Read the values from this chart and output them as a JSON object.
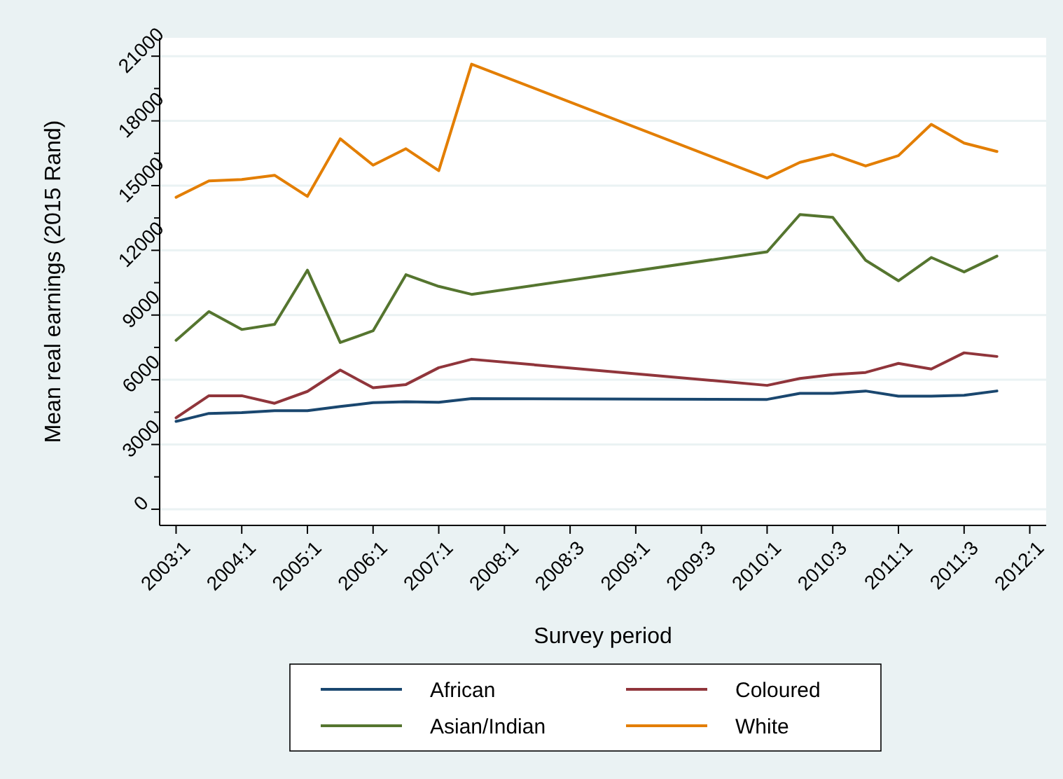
{
  "chart_data": {
    "type": "line",
    "xlabel": "Survey period",
    "ylabel": "Mean real earnings (2015 Rand)",
    "categories": [
      "2003:1",
      null,
      "2004:1",
      null,
      "2005:1",
      null,
      "2006:1",
      null,
      "2007:1",
      null,
      "2008:1",
      null,
      "2008:3",
      null,
      "2009:1",
      null,
      "2009:3",
      null,
      "2010:1",
      null,
      "2010:3",
      null,
      "2011:1",
      null,
      "2011:3",
      null,
      "2012:1"
    ],
    "ylim": [
      -750,
      21850
    ],
    "yticks": [
      0,
      {
        "value": 1500,
        "label": null
      },
      3000,
      {
        "value": 4500,
        "label": null
      },
      6000,
      {
        "value": 7500,
        "label": null
      },
      9000,
      {
        "value": 10500,
        "label": null
      },
      12000,
      {
        "value": 13500,
        "label": null
      },
      15000,
      {
        "value": 16500,
        "label": null
      },
      18000,
      {
        "value": 19500,
        "label": null
      },
      21000
    ],
    "grid": "y",
    "legend": "bottom",
    "marker": "none",
    "line_style": "solid",
    "series": [
      {
        "name": "African",
        "color": "#1a476f",
        "values": [
          4070,
          4440,
          4480,
          4570,
          4570,
          4760,
          4940,
          4980,
          4960,
          5130,
          null,
          null,
          null,
          null,
          null,
          null,
          null,
          null,
          5090,
          5370,
          5370,
          5480,
          5240,
          5240,
          5280,
          5480,
          null
        ]
      },
      {
        "name": "Coloured",
        "color": "#90353b",
        "values": [
          4240,
          5260,
          5260,
          4910,
          5460,
          6450,
          5630,
          5780,
          6560,
          6950,
          null,
          null,
          null,
          null,
          null,
          null,
          null,
          null,
          5740,
          6060,
          6240,
          6340,
          6760,
          6500,
          7250,
          7080,
          null
        ]
      },
      {
        "name": "Asian/Indian",
        "color": "#55752f",
        "values": [
          7830,
          9160,
          8330,
          8570,
          11080,
          7730,
          8270,
          10870,
          10330,
          9960,
          null,
          null,
          null,
          null,
          null,
          null,
          null,
          null,
          11930,
          13660,
          13530,
          11540,
          10590,
          11670,
          11000,
          11730,
          null
        ]
      },
      {
        "name": "White",
        "color": "#e37e00",
        "values": [
          14460,
          15220,
          15280,
          15480,
          14500,
          17170,
          15950,
          16710,
          15690,
          20630,
          null,
          null,
          null,
          null,
          null,
          null,
          null,
          null,
          15350,
          16080,
          16450,
          15910,
          16390,
          17840,
          16970,
          16580,
          null
        ]
      }
    ]
  }
}
